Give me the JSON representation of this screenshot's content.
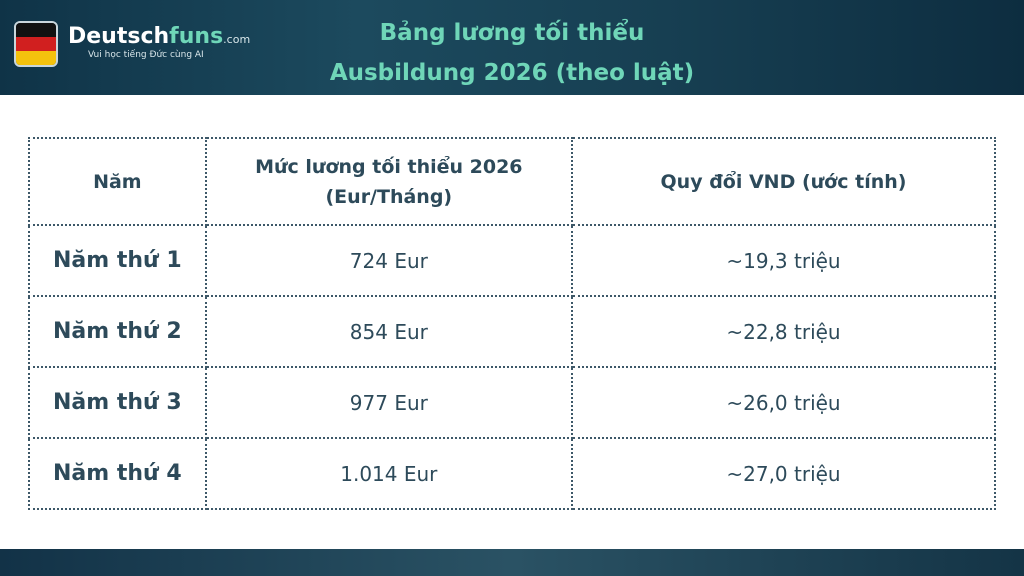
{
  "logo": {
    "name_parts": [
      "Deutsch",
      "funs",
      ".com"
    ],
    "tagline": "Vui học tiếng Đức cùng AI"
  },
  "title": {
    "lines": [
      "Bảng lương tối thiểu",
      "Ausbildung 2026 (theo luật)"
    ]
  },
  "table": {
    "header": [
      "Năm",
      [
        "Mức lương tối thiểu 2026",
        "(Eur/Tháng)"
      ],
      "Quy đổi VND (ước tính)"
    ],
    "rows": [
      [
        "Năm thứ 1",
        "724 Eur",
        "~19,3 triệu"
      ],
      [
        "Năm thứ 2",
        "854 Eur",
        "~22,8 triệu"
      ],
      [
        "Năm thứ 3",
        "977 Eur",
        "~26,0 triệu"
      ],
      [
        "Năm thứ 4",
        "1.014 Eur",
        "~27,0 triệu"
      ]
    ]
  }
}
